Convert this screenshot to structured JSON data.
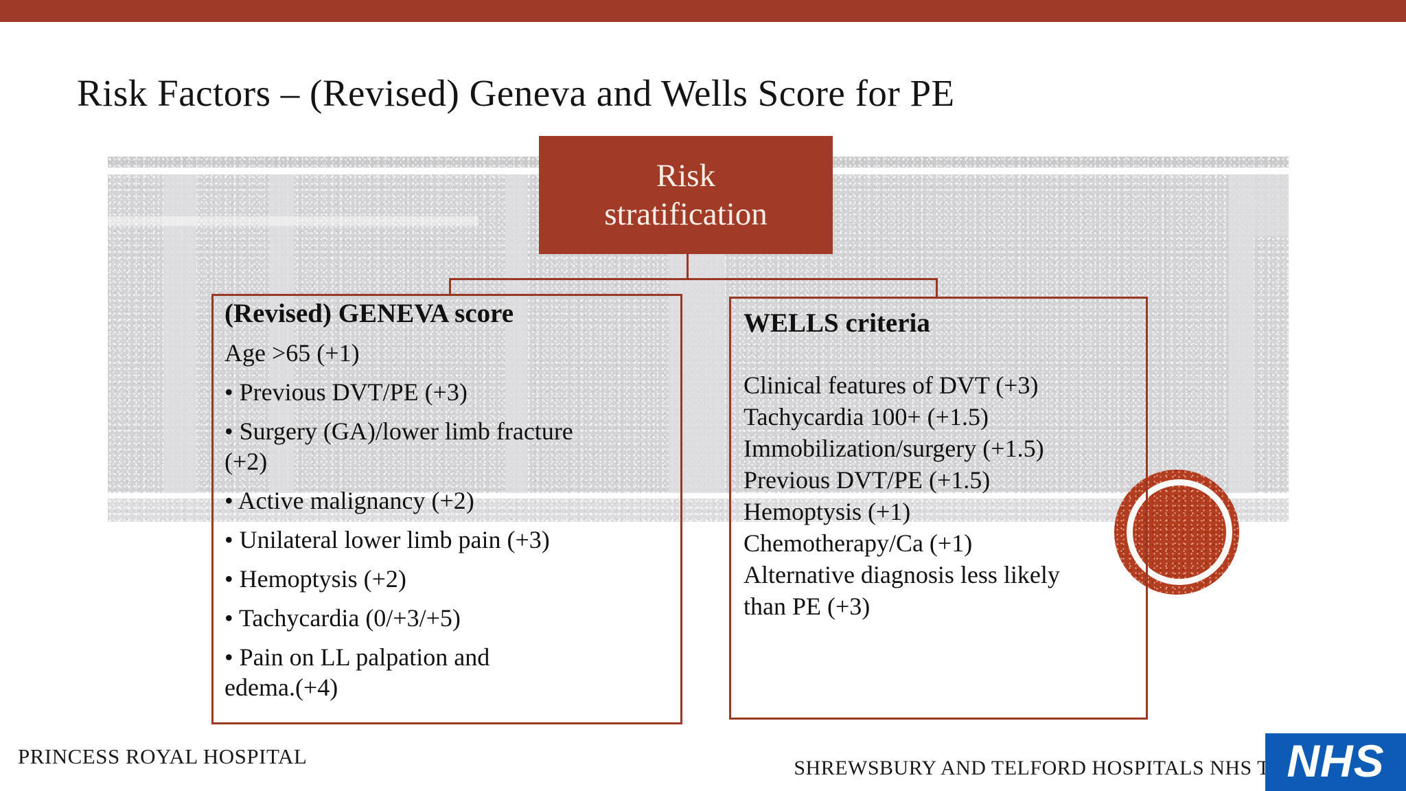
{
  "slide_title": "Risk Factors – (Revised) Geneva and Wells Score for PE",
  "diagram": {
    "root_label": "Risk stratification",
    "geneva": {
      "header": "(Revised) GENEVA score",
      "items": [
        "Age >65 (+1)",
        "• Previous DVT/PE (+3)",
        "• Surgery (GA)/lower limb fracture\n(+2)",
        "• Active malignancy (+2)",
        "• Unilateral lower limb pain (+3)",
        "• Hemoptysis (+2)",
        "• Tachycardia (0/+3/+5)",
        "• Pain on LL palpation and\nedema.(+4)"
      ]
    },
    "wells": {
      "header": "WELLS criteria",
      "items": [
        "Clinical features of DVT (+3)",
        "Tachycardia 100+ (+1.5)",
        "Immobilization/surgery (+1.5)",
        "Previous DVT/PE (+1.5)",
        "Hemoptysis (+1)",
        "Chemotherapy/Ca (+1)",
        "Alternative diagnosis less likely\nthan PE (+3)"
      ]
    }
  },
  "footer": {
    "left_text": "PRINCESS ROYAL HOSPITAL",
    "right_text": "SHREWSBURY AND TELFORD HOSPITALS NHS T",
    "nhs_logo_text": "NHS"
  },
  "colors": {
    "accent_maroon": "#A23A28",
    "connector_red": "#9A3826",
    "circle_red": "#B33D21",
    "texture_gray": "#D4D4D6",
    "nhs_blue": "#0E5BB5"
  }
}
